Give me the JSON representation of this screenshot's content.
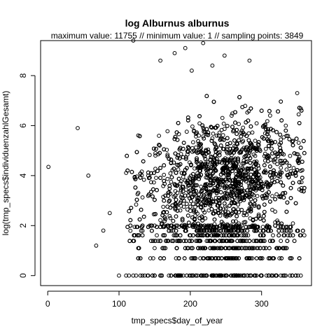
{
  "chart_data": {
    "type": "scatter",
    "title": "log Alburnus alburnus",
    "subtitle": "maximum value: 11755  //  minimum value: 1  // sampling points: 3849",
    "xlabel": "tmp_specs$day_of_year",
    "ylabel": "log(tmp_specs$individuenzahlGesamt)",
    "xlim": [
      -10,
      370
    ],
    "ylim": [
      -0.4,
      9.4
    ],
    "x_ticks": [
      0,
      100,
      200,
      300
    ],
    "y_ticks": [
      0,
      2,
      4,
      6,
      8
    ],
    "x_tick_labels": [
      "0",
      "100",
      "200",
      "300"
    ],
    "y_tick_labels": [
      "0",
      "2",
      "4",
      "6",
      "8"
    ],
    "grid": false,
    "legend": "none",
    "marker": "open-circle",
    "sampling_points": 3849,
    "maximum_value": 11755,
    "minimum_value": 1,
    "series": [
      {
        "points": [
          [
            1,
            4.35
          ],
          [
            42,
            5.9
          ],
          [
            57,
            4.0
          ],
          [
            68,
            1.2
          ],
          [
            78,
            1.8
          ],
          [
            87,
            2.5
          ],
          [
            120,
            9.4
          ],
          [
            218,
            9.3
          ],
          [
            193,
            9.1
          ],
          [
            202,
            8.2
          ],
          [
            178,
            8.9
          ],
          [
            158,
            8.6
          ],
          [
            231,
            8.4
          ],
          [
            248,
            8.8
          ],
          [
            283,
            8.6
          ],
          [
            350,
            7.3
          ],
          [
            100,
            0
          ],
          [
            110,
            0
          ],
          [
            120,
            0
          ],
          [
            130,
            0
          ],
          [
            140,
            0
          ],
          [
            150,
            0
          ],
          [
            160,
            0
          ],
          [
            170,
            0
          ],
          [
            180,
            0
          ],
          [
            190,
            0
          ],
          [
            200,
            0
          ],
          [
            210,
            0
          ],
          [
            220,
            0
          ],
          [
            230,
            0
          ],
          [
            240,
            0
          ],
          [
            250,
            0
          ],
          [
            260,
            0
          ],
          [
            270,
            0
          ],
          [
            280,
            0
          ],
          [
            290,
            0
          ],
          [
            300,
            0
          ],
          [
            310,
            0
          ],
          [
            320,
            0
          ],
          [
            330,
            0
          ],
          [
            340,
            0
          ],
          [
            355,
            0
          ]
        ]
      }
    ]
  }
}
